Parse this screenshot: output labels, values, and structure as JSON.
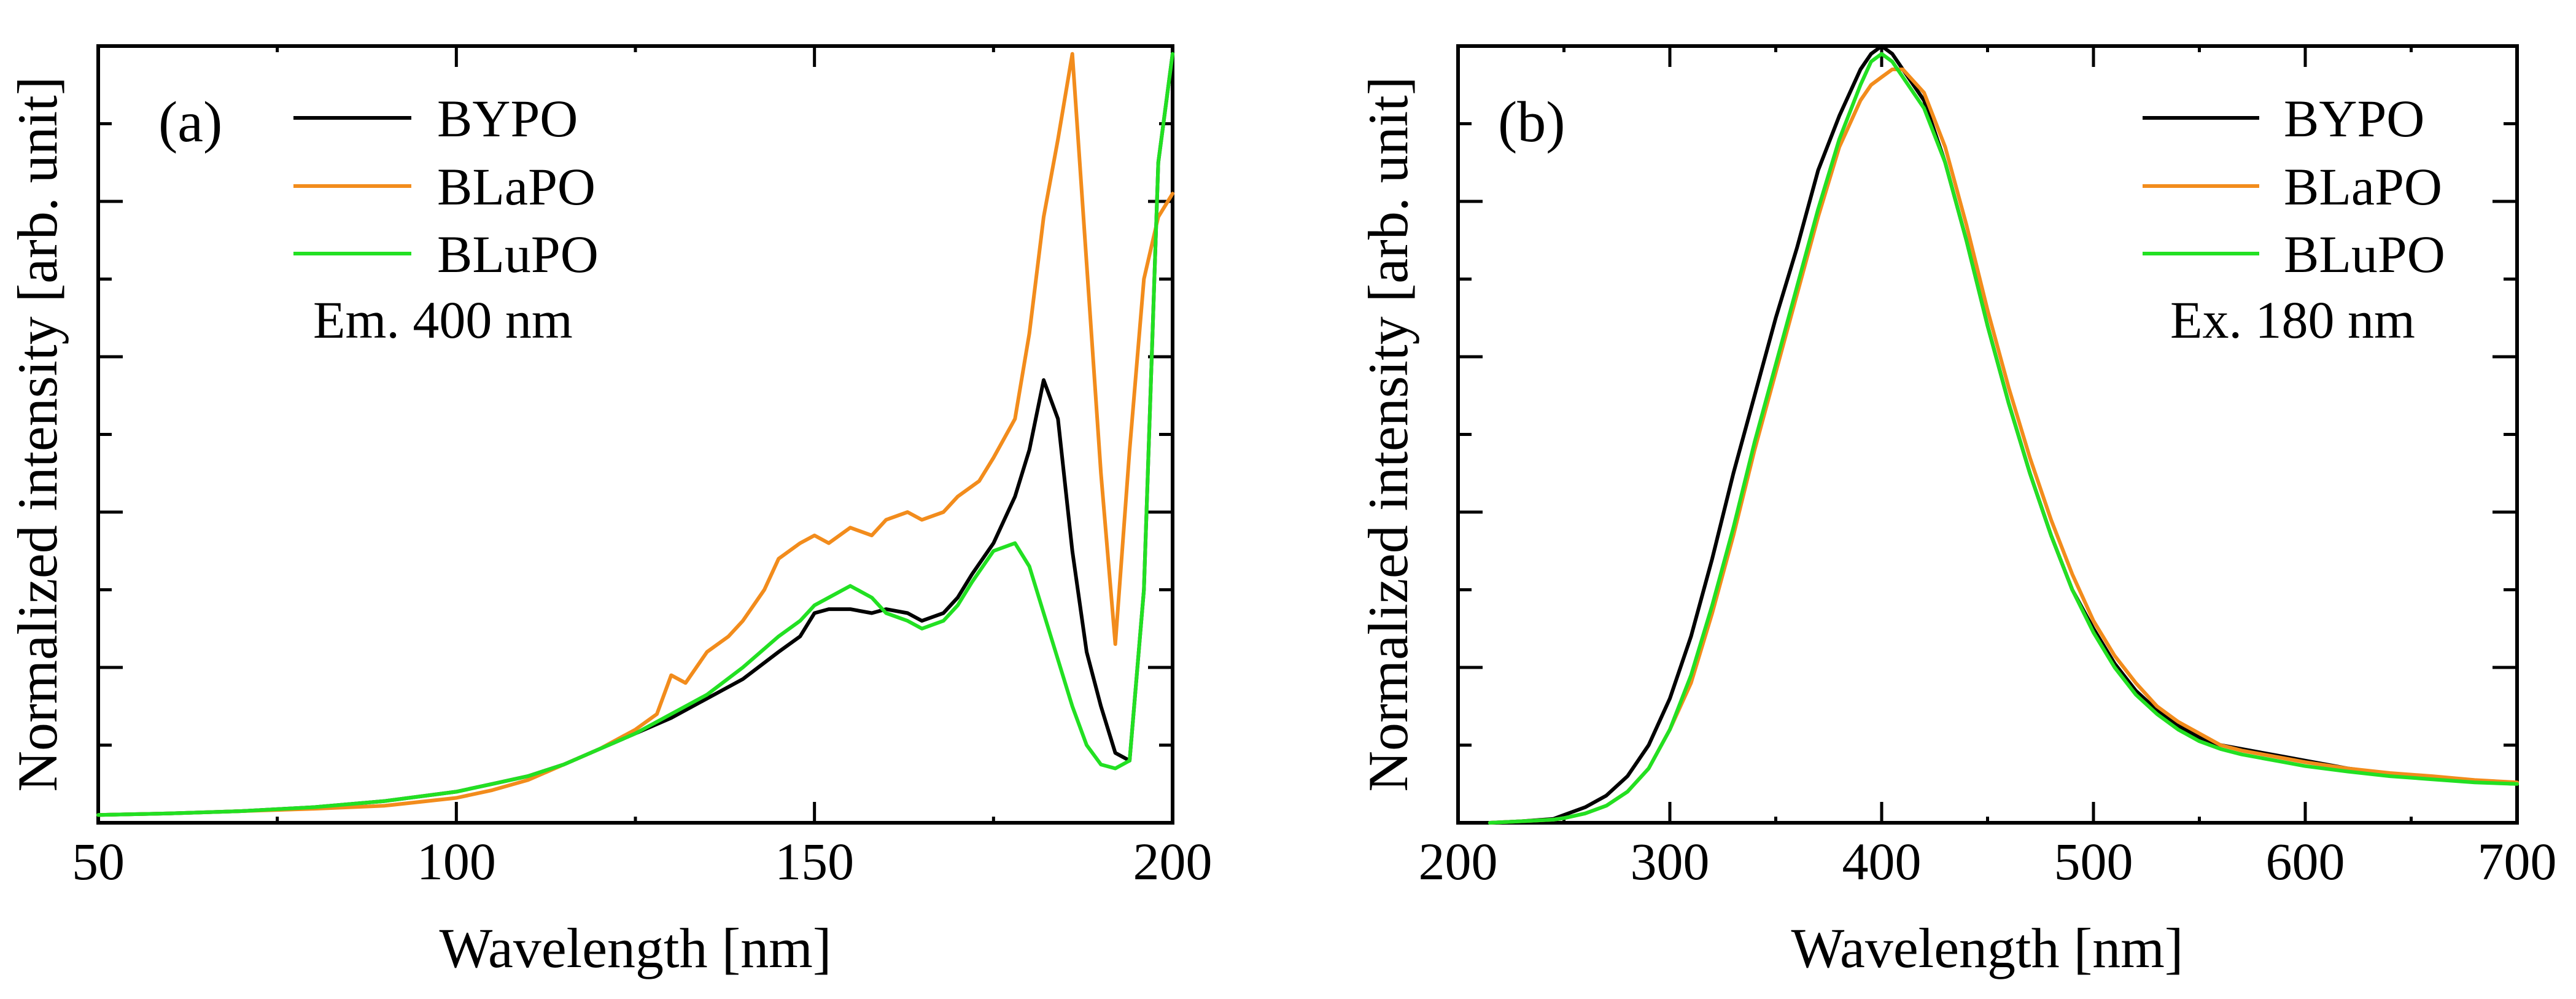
{
  "chart_data": [
    {
      "id": "a",
      "type": "line",
      "panel_label": "(a)",
      "title": "",
      "xlabel": "Wavelength [nm]",
      "ylabel": "Normalized intensity [arb. unit]",
      "xlim": [
        50,
        200
      ],
      "ylim": [
        0,
        1.0
      ],
      "xticks": [
        50,
        100,
        150,
        200
      ],
      "xtick_labels": [
        "50",
        "100",
        "150",
        "200"
      ],
      "yticks": [
        0,
        0.1,
        0.2,
        0.3,
        0.4,
        0.5,
        0.6,
        0.7,
        0.8,
        0.9,
        1.0
      ],
      "ytick_labels_visible": false,
      "legend_position": "top-left",
      "annotation": "Em. 400 nm",
      "series": [
        {
          "name": "BYPO",
          "color": "#000000",
          "x": [
            50,
            60,
            70,
            80,
            90,
            100,
            105,
            110,
            115,
            120,
            125,
            130,
            135,
            140,
            145,
            148,
            150,
            152,
            155,
            158,
            160,
            163,
            165,
            168,
            170,
            172,
            175,
            178,
            180,
            182,
            184,
            186,
            188,
            190,
            192,
            194,
            196,
            198,
            200
          ],
          "y": [
            0.01,
            0.012,
            0.015,
            0.02,
            0.028,
            0.04,
            0.05,
            0.06,
            0.075,
            0.095,
            0.115,
            0.135,
            0.16,
            0.185,
            0.22,
            0.24,
            0.27,
            0.275,
            0.275,
            0.27,
            0.275,
            0.27,
            0.26,
            0.27,
            0.29,
            0.32,
            0.36,
            0.42,
            0.48,
            0.57,
            0.52,
            0.35,
            0.22,
            0.15,
            0.09,
            0.08,
            0.3,
            0.85,
            0.99
          ]
        },
        {
          "name": "BLaPO",
          "color": "#F28C1C",
          "x": [
            50,
            60,
            70,
            80,
            90,
            100,
            105,
            110,
            115,
            120,
            125,
            128,
            130,
            132,
            135,
            138,
            140,
            143,
            145,
            148,
            150,
            152,
            155,
            158,
            160,
            163,
            165,
            168,
            170,
            173,
            175,
            178,
            180,
            182,
            184,
            186,
            188,
            190,
            192,
            194,
            196,
            198,
            200
          ],
          "y": [
            0.01,
            0.012,
            0.015,
            0.018,
            0.022,
            0.032,
            0.042,
            0.055,
            0.075,
            0.095,
            0.12,
            0.14,
            0.19,
            0.18,
            0.22,
            0.24,
            0.26,
            0.3,
            0.34,
            0.36,
            0.37,
            0.36,
            0.38,
            0.37,
            0.39,
            0.4,
            0.39,
            0.4,
            0.42,
            0.44,
            0.47,
            0.52,
            0.63,
            0.78,
            0.88,
            0.99,
            0.72,
            0.45,
            0.23,
            0.48,
            0.7,
            0.78,
            0.81
          ]
        },
        {
          "name": "BLuPO",
          "color": "#22E022",
          "x": [
            50,
            60,
            70,
            80,
            90,
            100,
            105,
            110,
            115,
            120,
            125,
            130,
            135,
            140,
            145,
            148,
            150,
            152,
            155,
            158,
            160,
            163,
            165,
            168,
            170,
            172,
            175,
            178,
            180,
            182,
            184,
            186,
            188,
            190,
            192,
            194,
            196,
            198,
            200
          ],
          "y": [
            0.01,
            0.012,
            0.015,
            0.02,
            0.028,
            0.04,
            0.05,
            0.06,
            0.075,
            0.095,
            0.115,
            0.14,
            0.165,
            0.2,
            0.24,
            0.26,
            0.28,
            0.29,
            0.305,
            0.29,
            0.27,
            0.26,
            0.25,
            0.26,
            0.28,
            0.31,
            0.35,
            0.36,
            0.33,
            0.27,
            0.21,
            0.15,
            0.1,
            0.075,
            0.07,
            0.08,
            0.3,
            0.85,
            0.99
          ]
        }
      ]
    },
    {
      "id": "b",
      "type": "line",
      "panel_label": "(b)",
      "title": "",
      "xlabel": "Wavelength [nm]",
      "ylabel": "Normalized intensity [arb. unit]",
      "xlim": [
        200,
        700
      ],
      "ylim": [
        0,
        1.0
      ],
      "xticks": [
        200,
        300,
        400,
        500,
        600,
        700
      ],
      "xtick_labels": [
        "200",
        "300",
        "400",
        "500",
        "600",
        "700"
      ],
      "yticks": [
        0,
        0.1,
        0.2,
        0.3,
        0.4,
        0.5,
        0.6,
        0.7,
        0.8,
        0.9,
        1.0
      ],
      "ytick_labels_visible": false,
      "legend_position": "top-right",
      "annotation": "Ex. 180 nm",
      "series": [
        {
          "name": "BYPO",
          "color": "#000000",
          "x": [
            215,
            230,
            245,
            250,
            260,
            270,
            280,
            290,
            300,
            310,
            320,
            330,
            340,
            350,
            360,
            370,
            380,
            390,
            395,
            400,
            405,
            410,
            420,
            430,
            440,
            450,
            460,
            470,
            480,
            490,
            500,
            510,
            520,
            530,
            540,
            550,
            560,
            570,
            580,
            590,
            600,
            620,
            640,
            660,
            680,
            700
          ],
          "y": [
            0.0,
            0.002,
            0.005,
            0.01,
            0.02,
            0.035,
            0.06,
            0.1,
            0.16,
            0.24,
            0.34,
            0.45,
            0.55,
            0.65,
            0.74,
            0.84,
            0.91,
            0.97,
            0.99,
            1.0,
            0.99,
            0.97,
            0.93,
            0.85,
            0.75,
            0.64,
            0.54,
            0.45,
            0.37,
            0.3,
            0.25,
            0.205,
            0.17,
            0.145,
            0.125,
            0.11,
            0.1,
            0.095,
            0.09,
            0.085,
            0.08,
            0.07,
            0.063,
            0.058,
            0.053,
            0.05
          ]
        },
        {
          "name": "BLaPO",
          "color": "#F28C1C",
          "x": [
            215,
            230,
            245,
            250,
            260,
            270,
            280,
            290,
            300,
            310,
            320,
            330,
            340,
            350,
            360,
            370,
            380,
            390,
            395,
            400,
            405,
            410,
            420,
            430,
            440,
            450,
            460,
            470,
            480,
            490,
            500,
            510,
            520,
            530,
            540,
            550,
            560,
            570,
            580,
            590,
            600,
            620,
            640,
            660,
            680,
            700
          ],
          "y": [
            0.0,
            0.002,
            0.004,
            0.006,
            0.012,
            0.022,
            0.04,
            0.07,
            0.12,
            0.18,
            0.27,
            0.37,
            0.48,
            0.58,
            0.68,
            0.78,
            0.87,
            0.93,
            0.95,
            0.96,
            0.97,
            0.97,
            0.94,
            0.87,
            0.77,
            0.66,
            0.56,
            0.47,
            0.39,
            0.32,
            0.26,
            0.215,
            0.18,
            0.15,
            0.13,
            0.115,
            0.1,
            0.093,
            0.088,
            0.083,
            0.078,
            0.07,
            0.064,
            0.06,
            0.055,
            0.052
          ]
        },
        {
          "name": "BLuPO",
          "color": "#22E022",
          "x": [
            215,
            230,
            245,
            250,
            260,
            270,
            280,
            290,
            300,
            310,
            320,
            330,
            340,
            350,
            360,
            370,
            380,
            390,
            395,
            400,
            405,
            410,
            420,
            430,
            440,
            450,
            460,
            470,
            480,
            490,
            500,
            510,
            520,
            530,
            540,
            550,
            560,
            570,
            580,
            590,
            600,
            620,
            640,
            660,
            680,
            700
          ],
          "y": [
            0.0,
            0.002,
            0.004,
            0.006,
            0.012,
            0.022,
            0.04,
            0.07,
            0.12,
            0.19,
            0.28,
            0.38,
            0.49,
            0.59,
            0.69,
            0.79,
            0.88,
            0.95,
            0.98,
            0.99,
            0.98,
            0.96,
            0.92,
            0.85,
            0.75,
            0.64,
            0.54,
            0.45,
            0.37,
            0.3,
            0.245,
            0.2,
            0.165,
            0.14,
            0.12,
            0.105,
            0.095,
            0.088,
            0.083,
            0.078,
            0.073,
            0.066,
            0.06,
            0.056,
            0.052,
            0.05
          ]
        }
      ]
    }
  ]
}
